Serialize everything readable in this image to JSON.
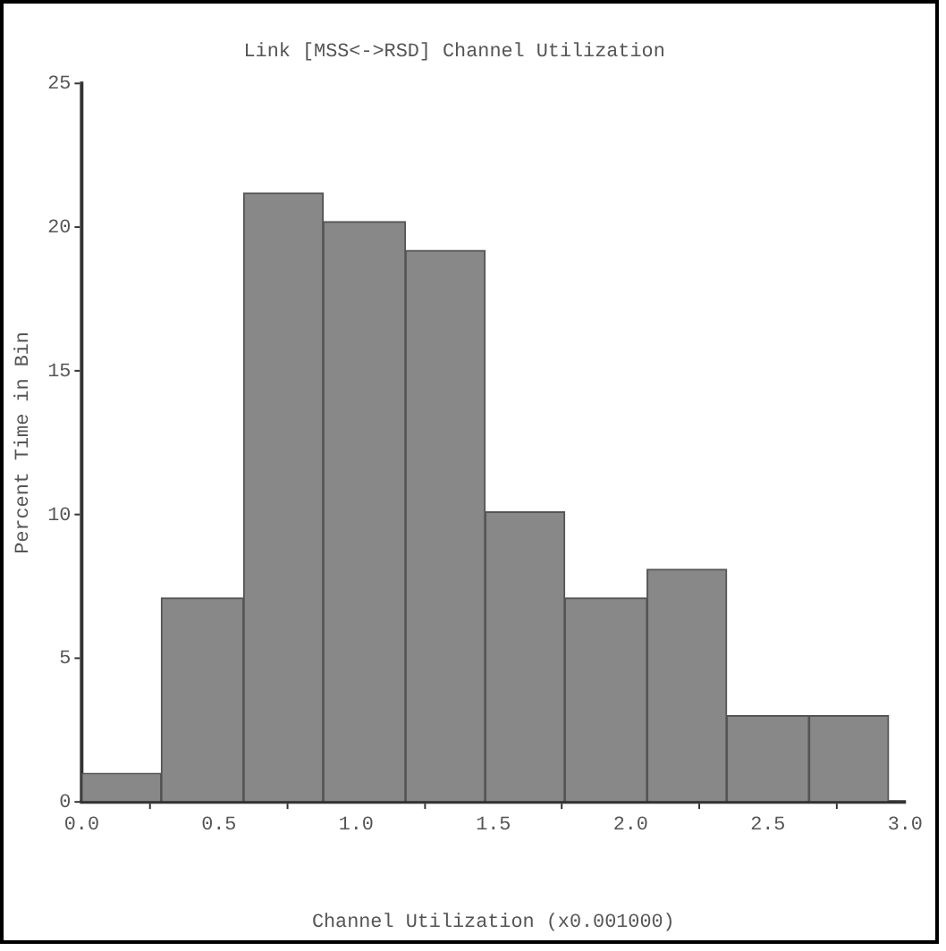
{
  "chart_data": {
    "type": "histogram",
    "title": "Link [MSS<->RSD] Channel Utilization",
    "xlabel": "Channel Utilization (x0.001000)",
    "ylabel": "Percent Time in Bin",
    "bins": [
      0,
      0.29,
      0.59,
      0.88,
      1.18,
      1.47,
      1.76,
      2.06,
      2.35,
      2.65,
      2.94
    ],
    "values": [
      1.0,
      7.1,
      21.2,
      20.2,
      19.2,
      10.1,
      7.1,
      8.1,
      3.0,
      3.0
    ],
    "color": "#888888",
    "xlim": [
      0,
      3
    ],
    "xticks": [
      {
        "value": 0,
        "label": "0.0"
      },
      0.5,
      {
        "value": 1,
        "label": "1.0"
      },
      1.5,
      {
        "value": 2,
        "label": "2.0"
      },
      2.5,
      {
        "value": 3,
        "label": "3.0"
      }
    ],
    "ylim": [
      0,
      25
    ],
    "yticks": [
      0,
      5,
      10,
      15,
      20,
      25
    ],
    "grid": false,
    "legend": false
  }
}
